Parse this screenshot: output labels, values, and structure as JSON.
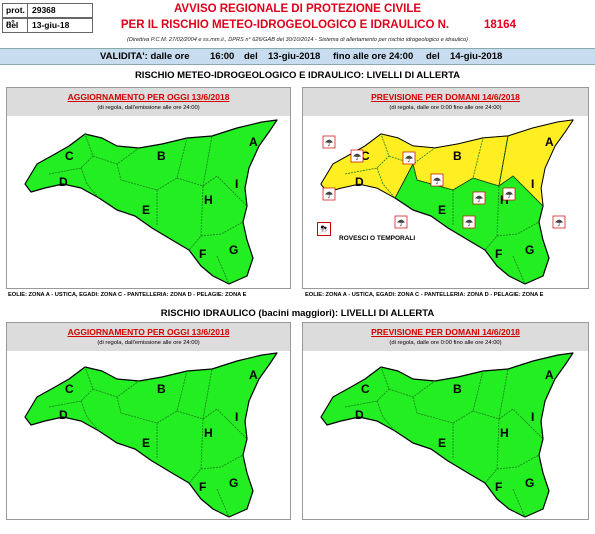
{
  "header": {
    "prot_label": "prot. n°",
    "prot_value": "29368",
    "del_label": "del",
    "del_value": "13-giu-18",
    "title_line1": "AVVISO REGIONALE DI PROTEZIONE CIVILE",
    "title_line2": "PER IL RISCHIO METEO-IDROGEOLOGICO E IDRAULICO N.",
    "notice_number": "18164",
    "directive": "(Direttiva P.C.M. 27/02/2004 e ss.mm.ii., DPRS n° 626/GAB del 30/10/2014 - Sistema di allertamento per rischio idrogeologico e idraulico)"
  },
  "validity": {
    "label": "VALIDITA': dalle ore",
    "from_time": "16:00",
    "del1": "del",
    "from_date": "13-giu-2018",
    "until": "fino alle ore 24:00",
    "del2": "del",
    "to_date": "14-giu-2018"
  },
  "sections": {
    "meteo_title": "RISCHIO METEO-IDROGEOLOGICO E IDRAULICO: LIVELLI DI ALLERTA",
    "idraulico_title": "RISCHIO IDRAULICO (bacini maggiori): LIVELLI DI ALLERTA"
  },
  "panels": {
    "today_title": "AGGIORNAMENTO PER OGGI 13/6/2018",
    "today_note": "(di regola, dall'emissione alle ore 24:00)",
    "tomorrow_title": "PREVISIONE PER DOMANI 14/6/2018",
    "tomorrow_note": "(di regola, dalle ore 0:00 fino alle ore 24:00)"
  },
  "legend": {
    "storms_label": "ROVESCI O TEMPORALI"
  },
  "islands_note": "EOLIE: ZONA A - USTICA, EGADI: ZONA C - PANTELLERIA: ZONA D - PELAGIE: ZONA E",
  "zone_labels": [
    "A",
    "B",
    "C",
    "D",
    "E",
    "F",
    "G",
    "H",
    "I"
  ],
  "colors": {
    "green": "#22ee22",
    "yellow": "#ffee22",
    "title_red": "#e0001a",
    "validity_bg": "#c8dcf0",
    "panel_head_bg": "#dcdcdc"
  }
}
